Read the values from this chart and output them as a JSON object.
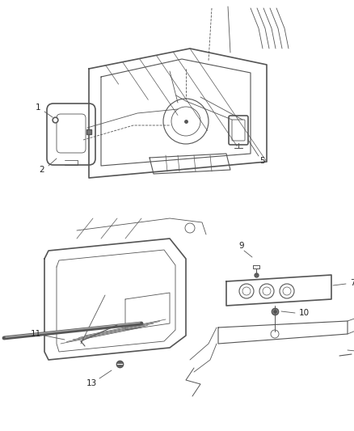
{
  "background_color": "#ffffff",
  "line_color": "#555555",
  "label_color": "#222222",
  "fig_width": 4.38,
  "fig_height": 5.33,
  "dpi": 100
}
